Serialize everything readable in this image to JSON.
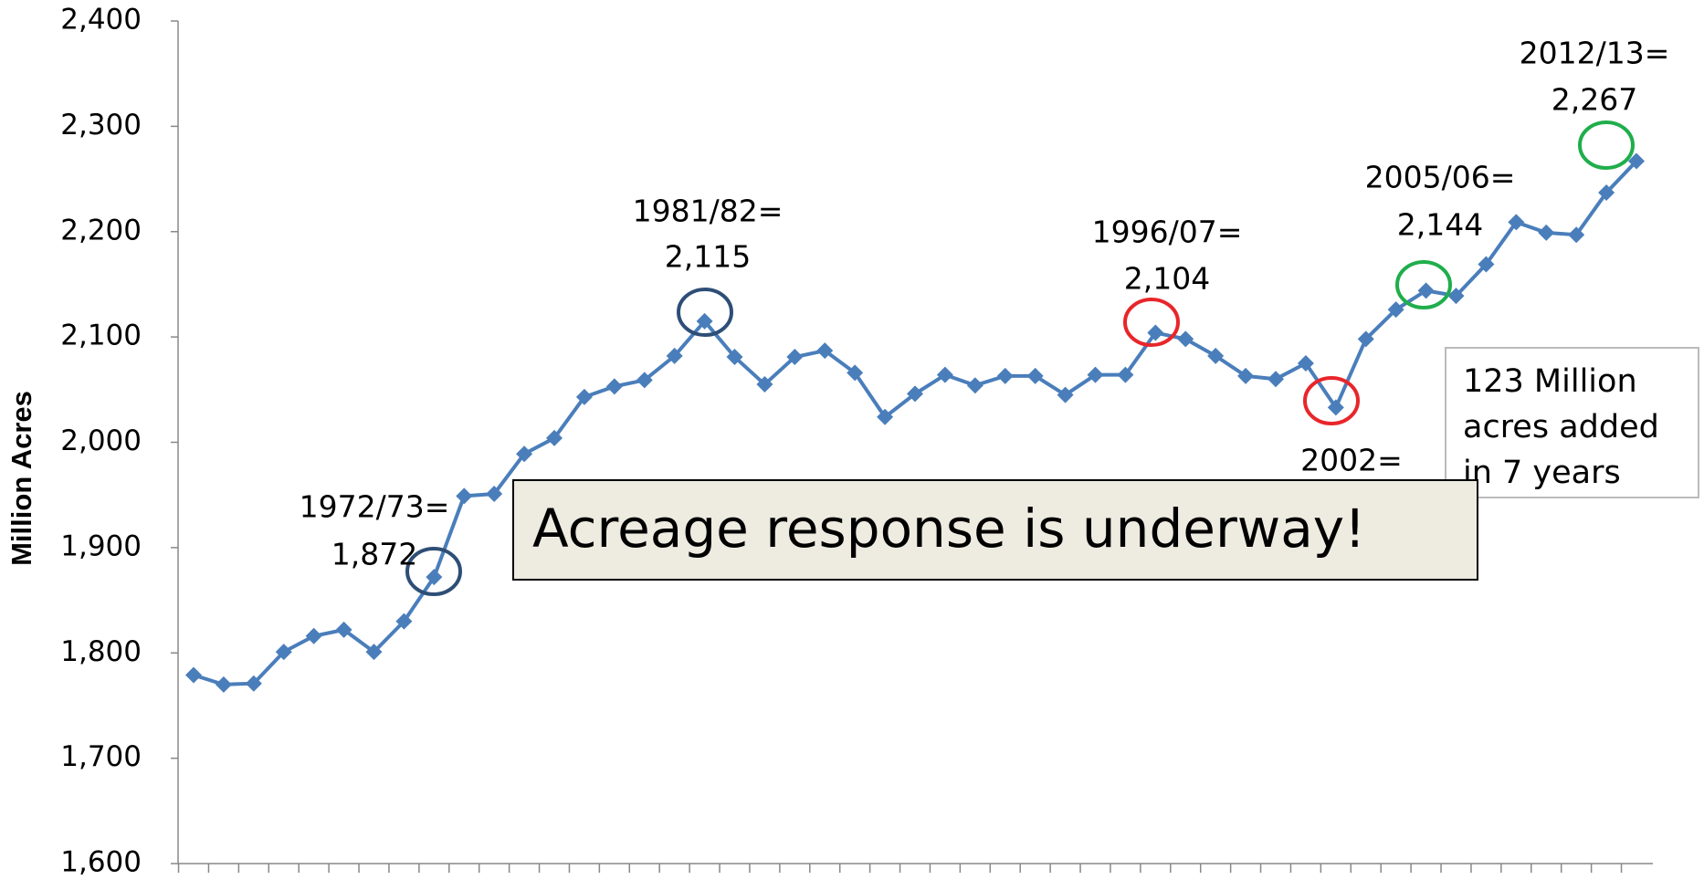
{
  "chart_data": {
    "type": "line",
    "y_axis_label": "Million Acres",
    "categories": [
      null,
      null,
      null,
      null,
      null,
      null,
      null,
      null,
      null,
      null,
      null,
      null,
      null,
      null,
      null,
      null,
      null,
      null,
      null,
      null,
      null,
      null,
      null,
      null,
      null,
      null,
      null,
      null,
      null,
      null,
      null,
      null,
      null,
      null,
      null,
      null,
      null,
      null,
      null,
      null,
      null,
      null,
      null,
      null,
      null,
      null,
      null,
      null,
      null
    ],
    "series": [
      {
        "color": "#4a7ebb",
        "values": [
          1779,
          1770,
          1771,
          1801,
          1816,
          1822,
          1801,
          1830,
          1872,
          1949,
          1951,
          1989,
          2004,
          2043,
          2053,
          2059,
          2082,
          2115,
          2081,
          2055,
          2081,
          2087,
          2066,
          2024,
          2046,
          2064,
          2054,
          2063,
          2063,
          2045,
          2064,
          2064,
          2104,
          2098,
          2082,
          2063,
          2060,
          2075,
          2033,
          2098,
          2126,
          2144,
          2139,
          2169,
          2209,
          2199,
          2197,
          2237,
          2267
        ]
      }
    ],
    "ylim": [
      1600,
      2400
    ],
    "yticks": [
      {
        "value": 1600,
        "label": "1,600"
      },
      {
        "value": 1700,
        "label": "1,700"
      },
      {
        "value": 1800,
        "label": "1,800"
      },
      {
        "value": 1900,
        "label": "1,900"
      },
      {
        "value": 2000,
        "label": "2,000"
      },
      {
        "value": 2100,
        "label": "2,100"
      },
      {
        "value": 2200,
        "label": "2,200"
      },
      {
        "value": 2300,
        "label": "2,300"
      },
      {
        "value": 2400,
        "label": "2,400"
      }
    ],
    "annotations": [
      {
        "lines": [
          "1972/73=",
          "1,872"
        ],
        "color": "#2e4e76"
      },
      {
        "lines": [
          "1981/82=",
          "2,115"
        ],
        "color": "#2e4e76"
      },
      {
        "lines": [
          "1996/07=",
          "2,104"
        ],
        "color": "#e8262a"
      },
      {
        "lines": [
          "2002="
        ],
        "color": "#e8262a"
      },
      {
        "lines": [
          "2005/06=",
          "2,144"
        ],
        "color": "#1fae4b"
      },
      {
        "lines": [
          "2012/13=",
          "2,267"
        ],
        "color": "#1fae4b"
      }
    ],
    "note_box": [
      "123 Million",
      "acres added",
      "in 7 years"
    ],
    "callout": "Acreage response is underway!"
  }
}
